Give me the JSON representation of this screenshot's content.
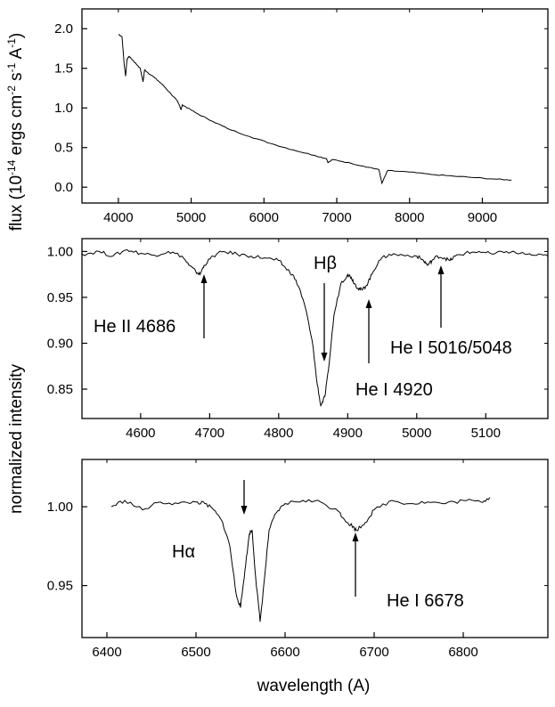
{
  "chart_data": [
    {
      "type": "line",
      "panel": "top",
      "ylabel_parts": [
        "flux (10",
        "-14",
        " ergs cm",
        "-2",
        " s",
        "-1",
        " A",
        "-1",
        ")"
      ],
      "xlim": [
        3500,
        9900
      ],
      "ylim": [
        -0.2,
        2.25
      ],
      "xticks": [
        4000,
        5000,
        6000,
        7000,
        8000,
        9000
      ],
      "xtick_labels": [
        "4000",
        "5000",
        "6000",
        "7000",
        "8000",
        "9000"
      ],
      "yticks": [
        0.0,
        0.5,
        1.0,
        1.5,
        2.0
      ],
      "ytick_labels": [
        "0.0",
        "0.5",
        "1.0",
        "1.5",
        "2.0"
      ],
      "grid": false,
      "series": [
        {
          "x": [
            4000,
            4050,
            4080,
            4100,
            4120,
            4150,
            4200,
            4250,
            4300,
            4340,
            4360,
            4400,
            4500,
            4600,
            4700,
            4800,
            4840,
            4861,
            4880,
            4950,
            5100,
            5300,
            5500,
            5800,
            6100,
            6400,
            6700,
            6860,
            6880,
            6950,
            7200,
            7450,
            7580,
            7620,
            7700,
            8000,
            8300,
            8600,
            8900,
            9200,
            9400
          ],
          "y": [
            1.93,
            1.9,
            1.55,
            1.4,
            1.62,
            1.65,
            1.6,
            1.55,
            1.5,
            1.33,
            1.48,
            1.45,
            1.38,
            1.3,
            1.2,
            1.1,
            1.03,
            0.98,
            1.04,
            1.0,
            0.92,
            0.83,
            0.74,
            0.64,
            0.55,
            0.47,
            0.4,
            0.36,
            0.31,
            0.35,
            0.3,
            0.25,
            0.22,
            0.05,
            0.21,
            0.19,
            0.16,
            0.14,
            0.12,
            0.1,
            0.09
          ]
        }
      ]
    },
    {
      "type": "line",
      "panel": "middle",
      "xlim": [
        4515,
        5190
      ],
      "ylim": [
        0.818,
        1.014
      ],
      "xticks": [
        4600,
        4700,
        4800,
        4900,
        5000,
        5100
      ],
      "xtick_labels": [
        "4600",
        "4700",
        "4800",
        "4900",
        "5000",
        "5100"
      ],
      "yticks": [
        0.85,
        0.9,
        0.95,
        1.0
      ],
      "ytick_labels": [
        "0.85",
        "0.90",
        "0.95",
        "1.00"
      ],
      "grid": false,
      "series": [
        {
          "x": [
            4515,
            4540,
            4560,
            4580,
            4600,
            4620,
            4640,
            4660,
            4670,
            4680,
            4686,
            4692,
            4705,
            4720,
            4740,
            4760,
            4780,
            4800,
            4810,
            4820,
            4830,
            4840,
            4850,
            4855,
            4861,
            4867,
            4872,
            4880,
            4890,
            4900,
            4905,
            4910,
            4915,
            4921,
            4927,
            4935,
            4945,
            4960,
            4980,
            5000,
            5010,
            5016,
            5022,
            5030,
            5040,
            5048,
            5056,
            5070,
            5090,
            5110,
            5130,
            5150,
            5170,
            5190
          ],
          "y": [
            0.997,
            1.0,
            0.995,
            1.002,
            0.998,
            0.996,
            1.0,
            0.995,
            0.985,
            0.978,
            0.975,
            0.985,
            0.995,
            1.0,
            0.997,
            0.995,
            0.993,
            0.99,
            0.982,
            0.975,
            0.96,
            0.935,
            0.895,
            0.86,
            0.832,
            0.842,
            0.87,
            0.93,
            0.965,
            0.975,
            0.972,
            0.965,
            0.96,
            0.958,
            0.963,
            0.975,
            0.99,
            0.997,
            0.996,
            0.995,
            0.99,
            0.985,
            0.99,
            0.995,
            0.993,
            0.99,
            0.995,
            0.998,
            1.0,
            0.997,
            1.0,
            0.998,
            0.996,
            0.995
          ]
        }
      ],
      "annotations": [
        "He II 4686",
        "Hβ",
        "He I 4920",
        "He I 5016/5048"
      ]
    },
    {
      "type": "line",
      "panel": "bottom",
      "xlim": [
        6372,
        6895
      ],
      "ylim": [
        0.917,
        1.03
      ],
      "xticks": [
        6400,
        6500,
        6600,
        6700,
        6800
      ],
      "xtick_labels": [
        "6400",
        "6500",
        "6600",
        "6700",
        "6800"
      ],
      "yticks": [
        0.95,
        1.0
      ],
      "ytick_labels": [
        "0.95",
        "1.00"
      ],
      "grid": false,
      "series": [
        {
          "x": [
            6405,
            6420,
            6440,
            6460,
            6480,
            6500,
            6510,
            6520,
            6530,
            6538,
            6545,
            6550,
            6555,
            6560,
            6563,
            6567,
            6572,
            6577,
            6582,
            6590,
            6600,
            6620,
            6640,
            6660,
            6670,
            6675,
            6680,
            6690,
            6700,
            6720,
            6740,
            6760,
            6780,
            6800,
            6820,
            6830
          ],
          "y": [
            1.0,
            1.004,
            0.998,
            1.003,
            1.002,
            1.003,
            1.002,
            0.998,
            0.99,
            0.975,
            0.945,
            0.936,
            0.96,
            0.983,
            0.985,
            0.955,
            0.927,
            0.955,
            0.985,
            0.996,
            1.002,
            1.004,
            1.003,
            0.997,
            0.99,
            0.988,
            0.985,
            0.99,
            0.998,
            1.004,
            1.002,
            1.003,
            1.002,
            1.004,
            1.003,
            1.006
          ]
        }
      ],
      "annotations": [
        "Hα",
        "He I 6678"
      ],
      "xlabel": "wavelength (A)"
    }
  ],
  "shared_ylabel": "normalized intensity"
}
